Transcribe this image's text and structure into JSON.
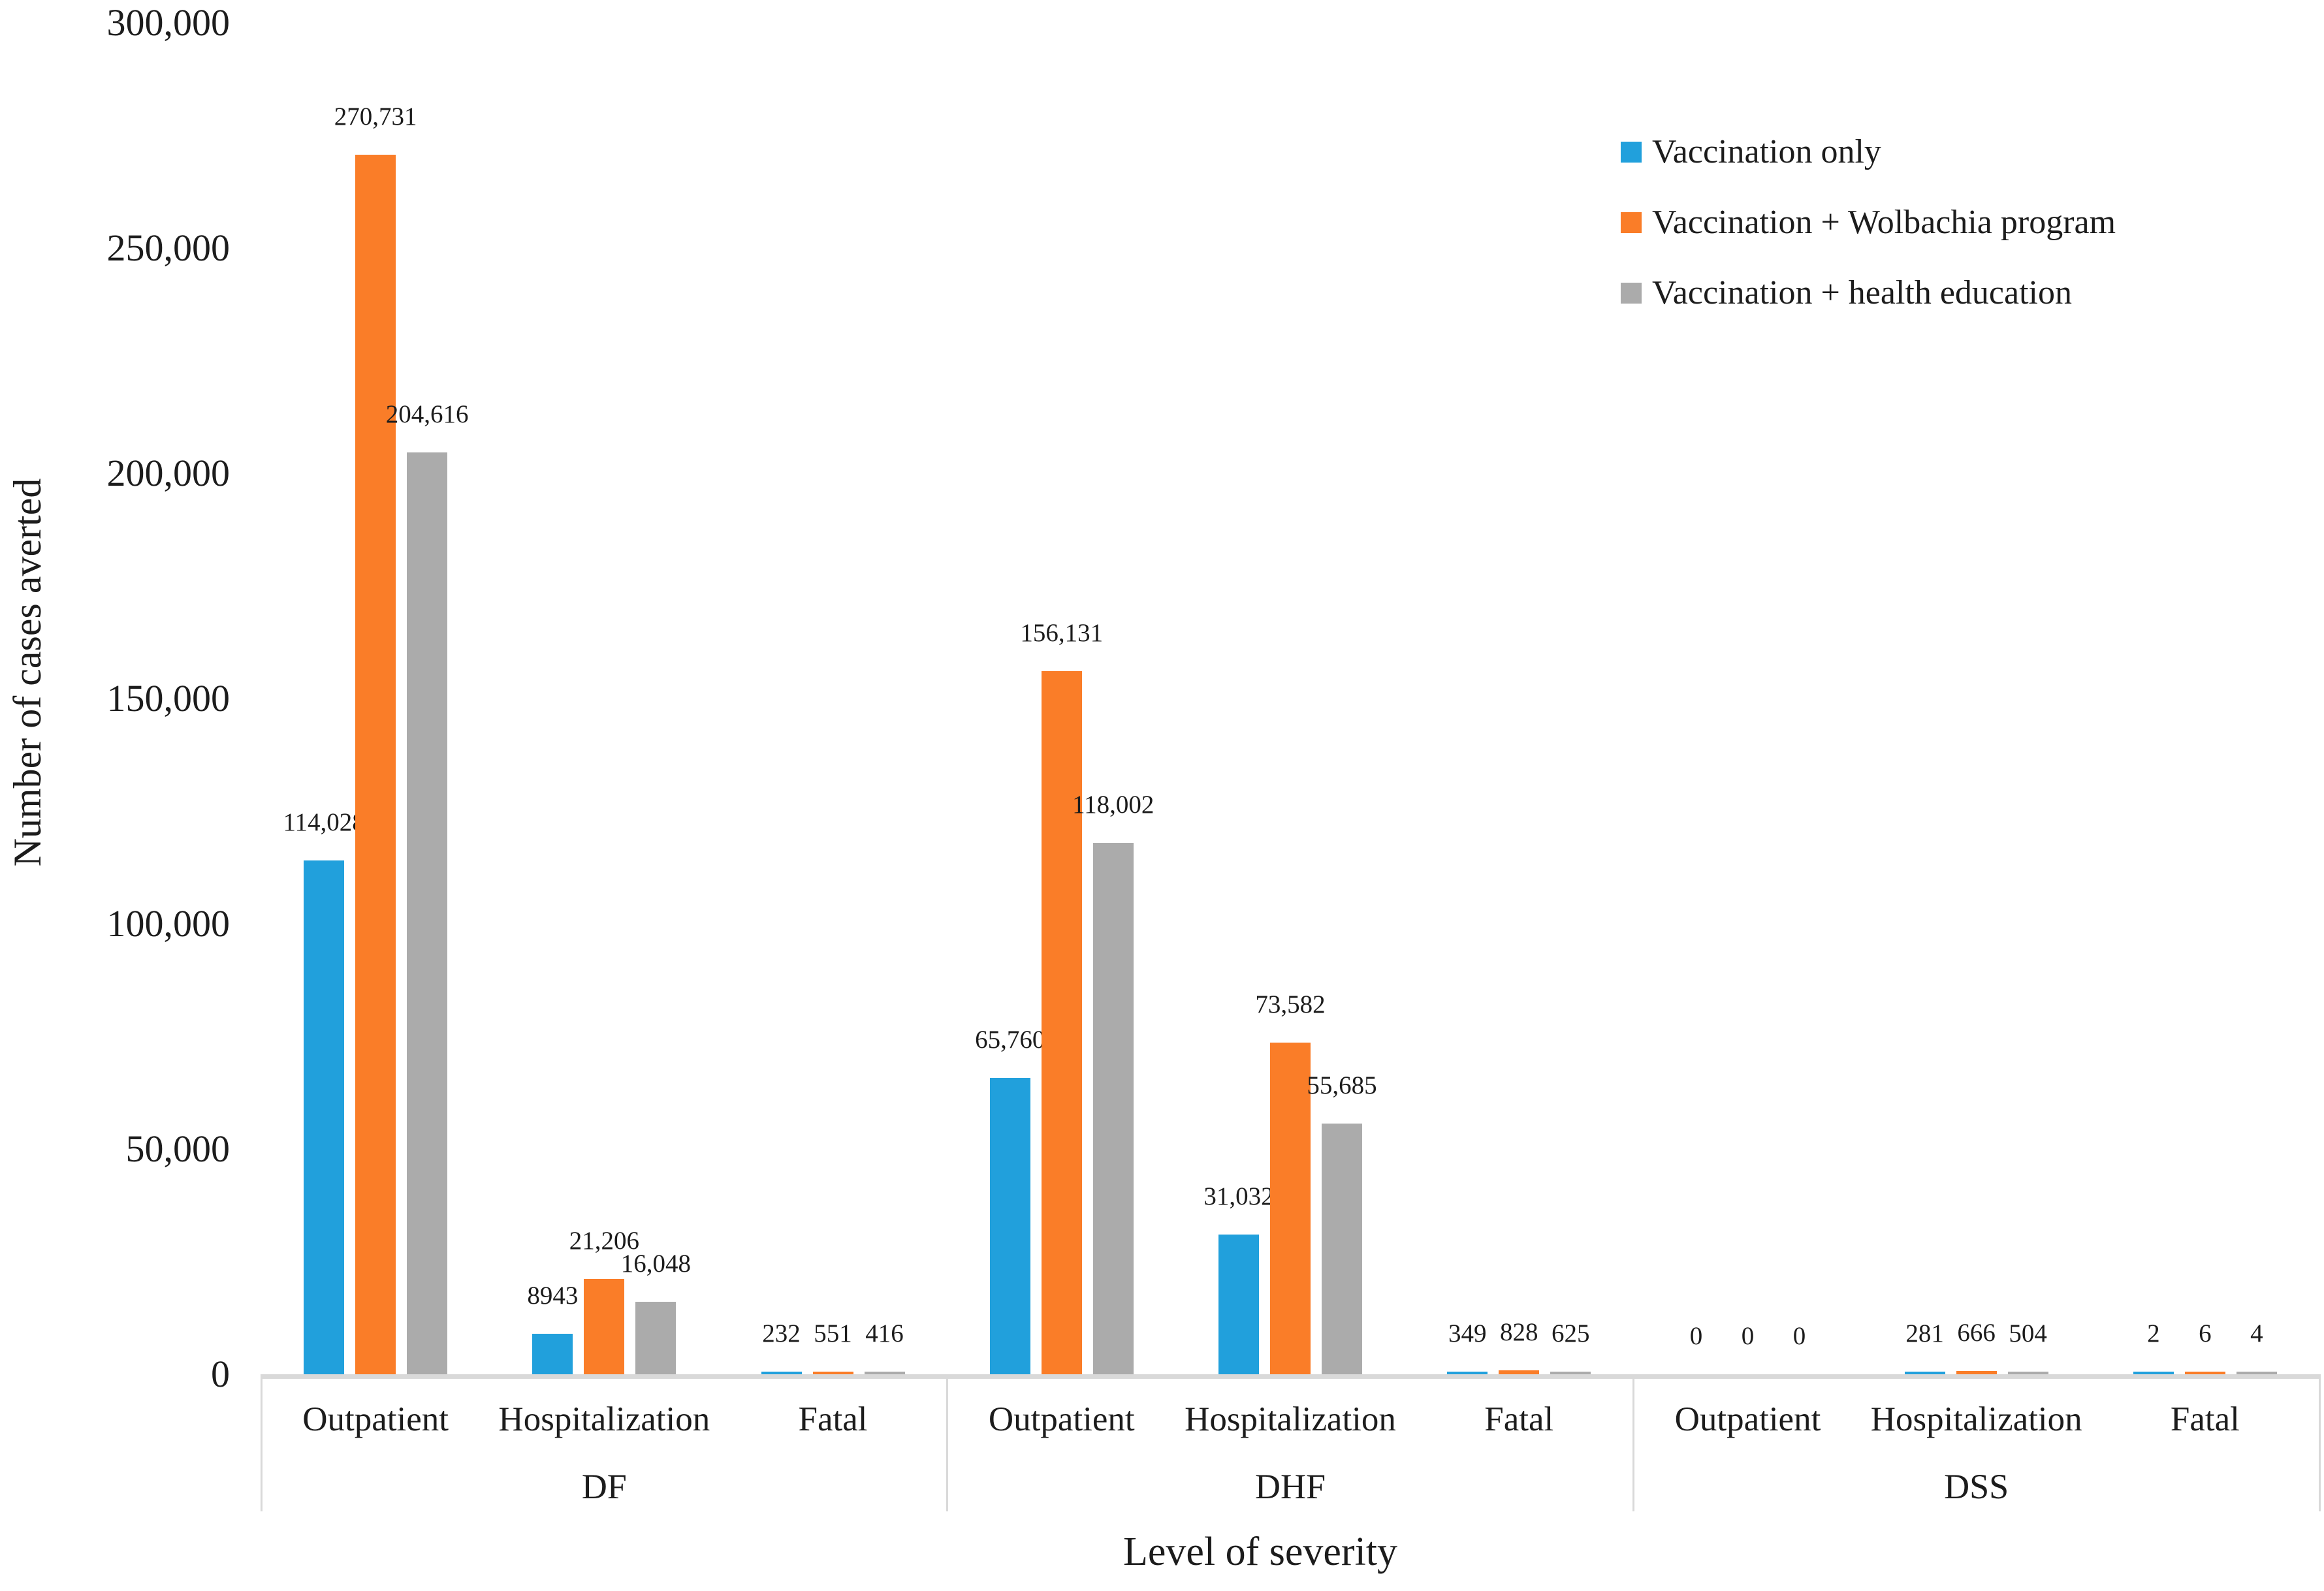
{
  "figure": {
    "kind": "grouped-bar-chart"
  },
  "y_axis": {
    "title": "Number of cases averted",
    "tick_labels": [
      "0",
      "50,000",
      "100,000",
      "150,000",
      "200,000",
      "250,000",
      "300,000"
    ],
    "tick_values": [
      0,
      50000,
      100000,
      150000,
      200000,
      250000,
      300000
    ]
  },
  "x_axis": {
    "title": "Level of severity"
  },
  "legend": {
    "items": [
      {
        "label": "Vaccination only",
        "color": "#21A0DC"
      },
      {
        "label": "Vaccination + Wolbachia program",
        "color": "#FA7D28"
      },
      {
        "label": "Vaccination + health education",
        "color": "#ABABAB"
      }
    ]
  },
  "chart_data": {
    "type": "bar",
    "title": "",
    "xlabel": "Level of severity",
    "ylabel": "Number of cases averted",
    "ylim": [
      0,
      300000
    ],
    "y_tick_step": 50000,
    "grid": false,
    "legend_position": "top-right",
    "group_labels": [
      "DF",
      "DHF",
      "DSS"
    ],
    "categories": [
      "Outpatient",
      "Hospitalization",
      "Fatal",
      "Outpatient",
      "Hospitalization",
      "Fatal",
      "Outpatient",
      "Hospitalization",
      "Fatal"
    ],
    "series": [
      {
        "name": "Vaccination only",
        "color": "#21A0DC",
        "values": [
          114028,
          8943,
          232,
          65760,
          31032,
          349,
          0,
          281,
          2
        ],
        "value_labels": [
          "114,028",
          "8943",
          "232",
          "65,760",
          "31,032",
          "349",
          "0",
          "281",
          "2"
        ]
      },
      {
        "name": "Vaccination + Wolbachia program",
        "color": "#FA7D28",
        "values": [
          270731,
          21206,
          551,
          156131,
          73582,
          828,
          0,
          666,
          6
        ],
        "value_labels": [
          "270,731",
          "21,206",
          "551",
          "156,131",
          "73,582",
          "828",
          "0",
          "666",
          "6"
        ]
      },
      {
        "name": "Vaccination + health education",
        "color": "#ABABAB",
        "values": [
          204616,
          16048,
          416,
          118002,
          55685,
          625,
          0,
          504,
          4
        ],
        "value_labels": [
          "204,616",
          "16,048",
          "416",
          "118,002",
          "55,685",
          "625",
          "0",
          "504",
          "4"
        ]
      }
    ]
  }
}
